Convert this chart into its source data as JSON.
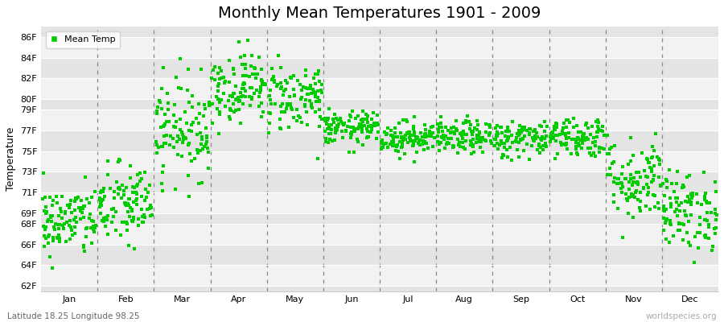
{
  "title": "Monthly Mean Temperatures 1901 - 2009",
  "ylabel": "Temperature",
  "subtitle": "Latitude 18.25 Longitude 98.25",
  "watermark": "worldspecies.org",
  "legend_label": "Mean Temp",
  "dot_color": "#00cc00",
  "bg_color": "#ebebeb",
  "bg_band_light": "#f2f2f2",
  "bg_band_dark": "#e4e4e4",
  "ytick_labels": [
    "62F",
    "64F",
    "66F",
    "68F",
    "69F",
    "71F",
    "73F",
    "75F",
    "77F",
    "79F",
    "80F",
    "82F",
    "84F",
    "86F"
  ],
  "ytick_values": [
    62,
    64,
    66,
    68,
    69,
    71,
    73,
    75,
    77,
    79,
    80,
    82,
    84,
    86
  ],
  "ylim": [
    61.5,
    87.0
  ],
  "month_names": [
    "Jan",
    "Feb",
    "Mar",
    "Apr",
    "May",
    "Jun",
    "Jul",
    "Aug",
    "Sep",
    "Oct",
    "Nov",
    "Dec"
  ],
  "num_years": 109,
  "seed": 42,
  "monthly_means": [
    68.2,
    69.8,
    77.2,
    81.2,
    80.2,
    77.2,
    76.3,
    76.3,
    76.2,
    76.4,
    72.3,
    69.2
  ],
  "monthly_stds": [
    1.7,
    2.0,
    2.4,
    1.7,
    1.7,
    0.8,
    0.8,
    0.8,
    0.9,
    1.0,
    2.0,
    1.9
  ],
  "title_fontsize": 14,
  "axis_label_fontsize": 9,
  "tick_fontsize": 8
}
